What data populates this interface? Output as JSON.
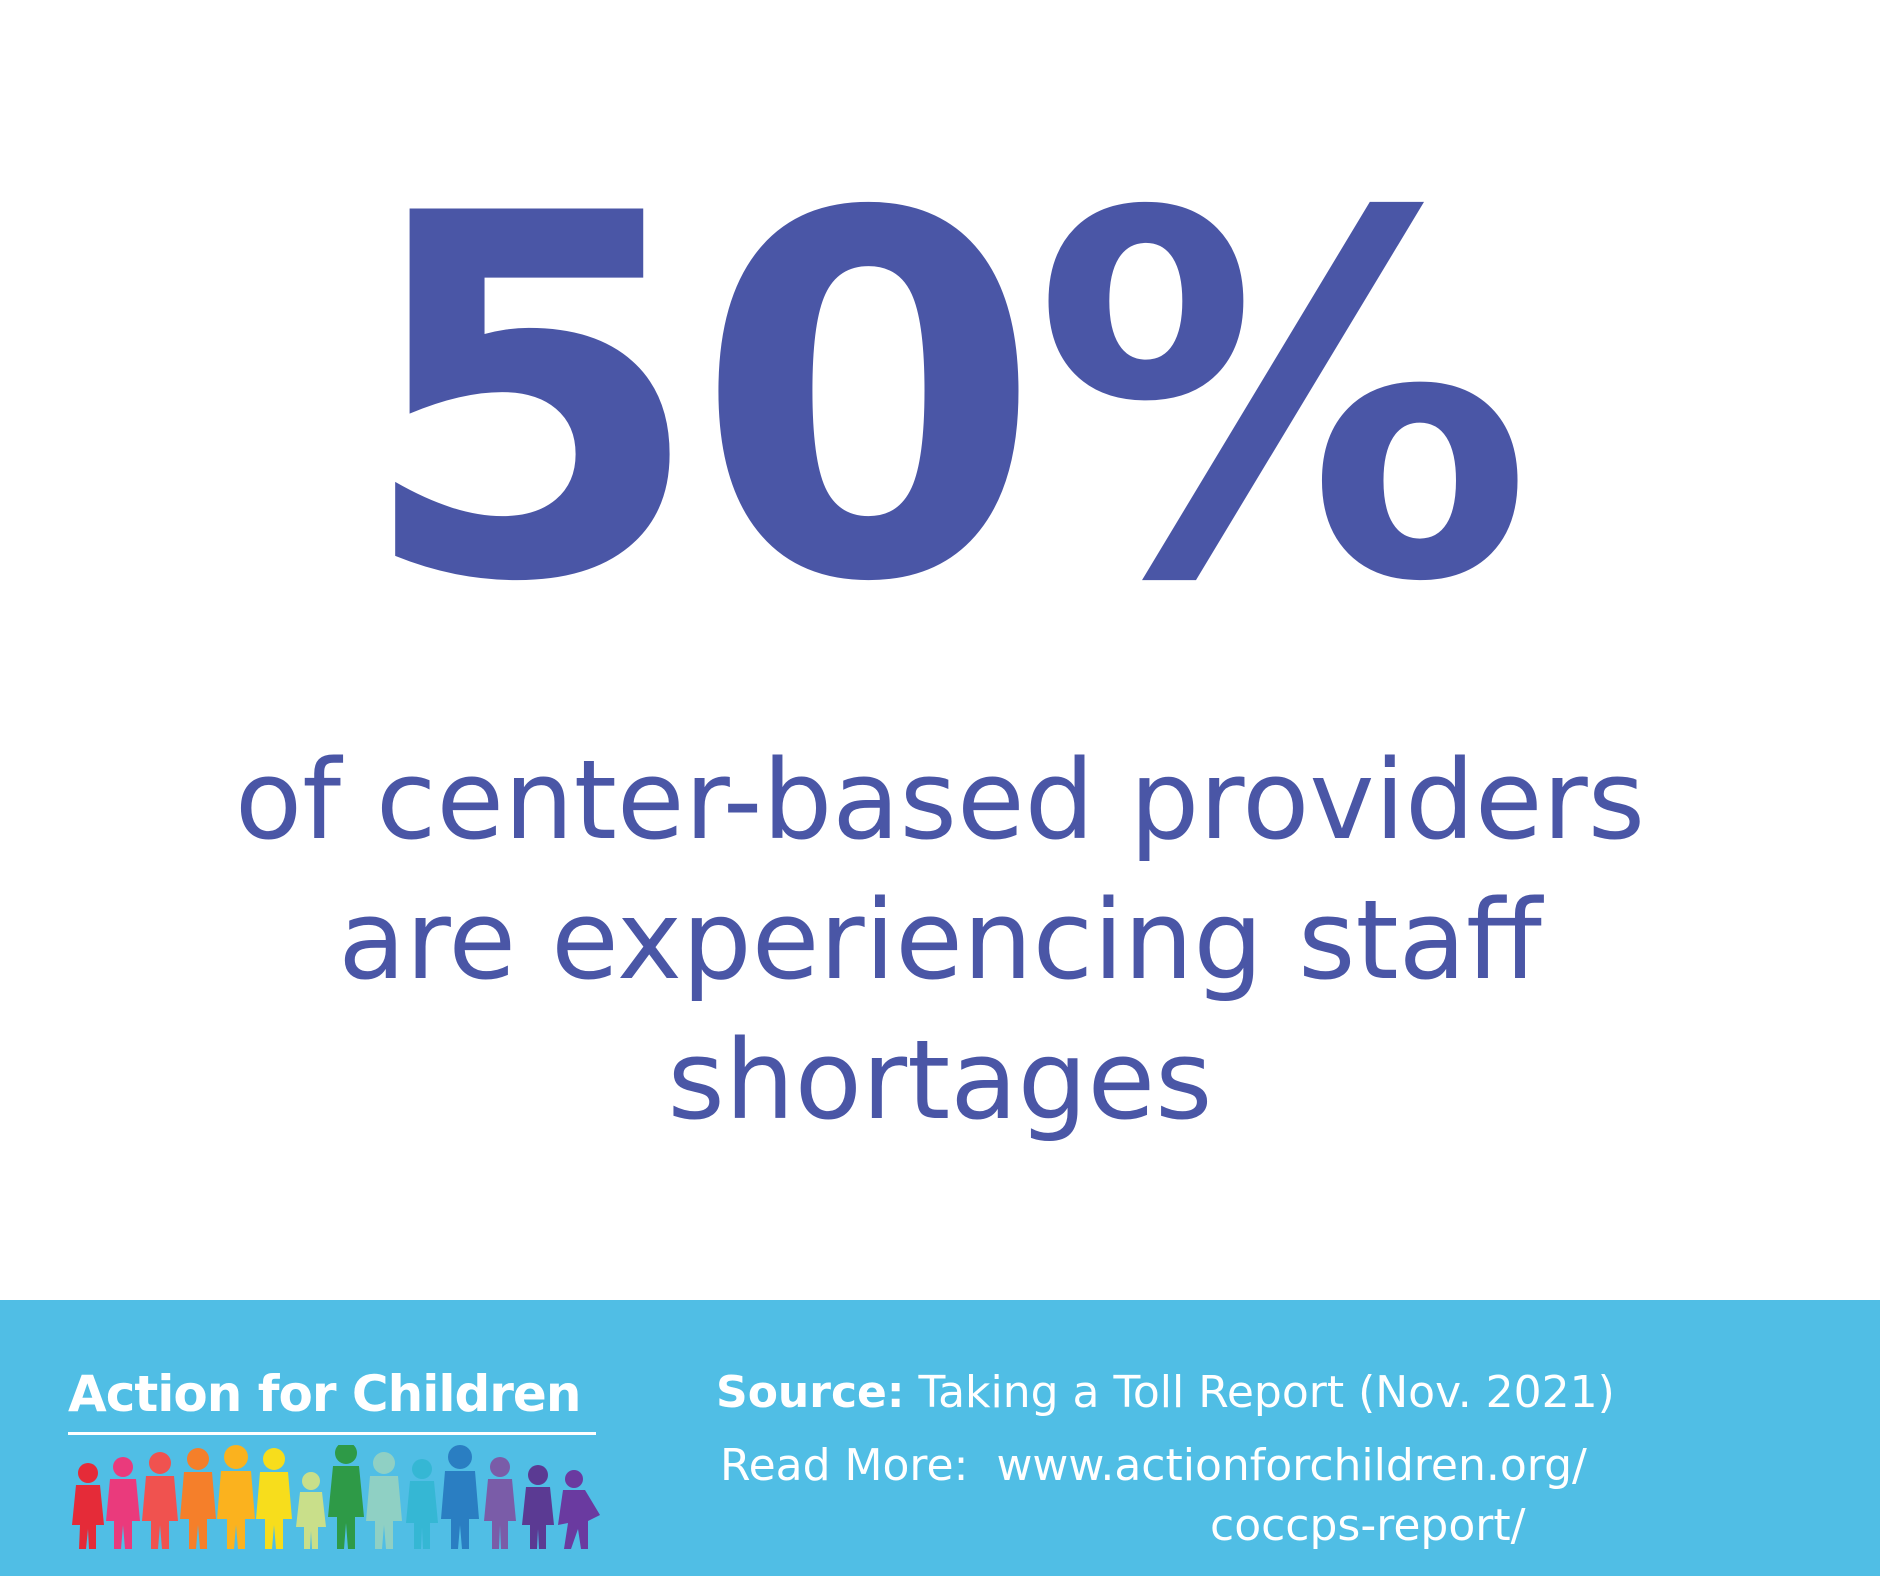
{
  "headline": {
    "stat": "50%",
    "lines": [
      "of center-based providers",
      "are experiencing staff",
      "shortages"
    ],
    "color": "#4a56a6"
  },
  "footer": {
    "background": "#50bee5",
    "brand_name": "Action for Children",
    "logo_icon": "children-silhouettes-icon",
    "source_label": "Source:",
    "source_text": "Taking a Toll Report (Nov. 2021)",
    "read_more_label": "Read More:",
    "url_line_1": "www.actionforchildren.org/",
    "url_line_2": "coccps-report/"
  }
}
